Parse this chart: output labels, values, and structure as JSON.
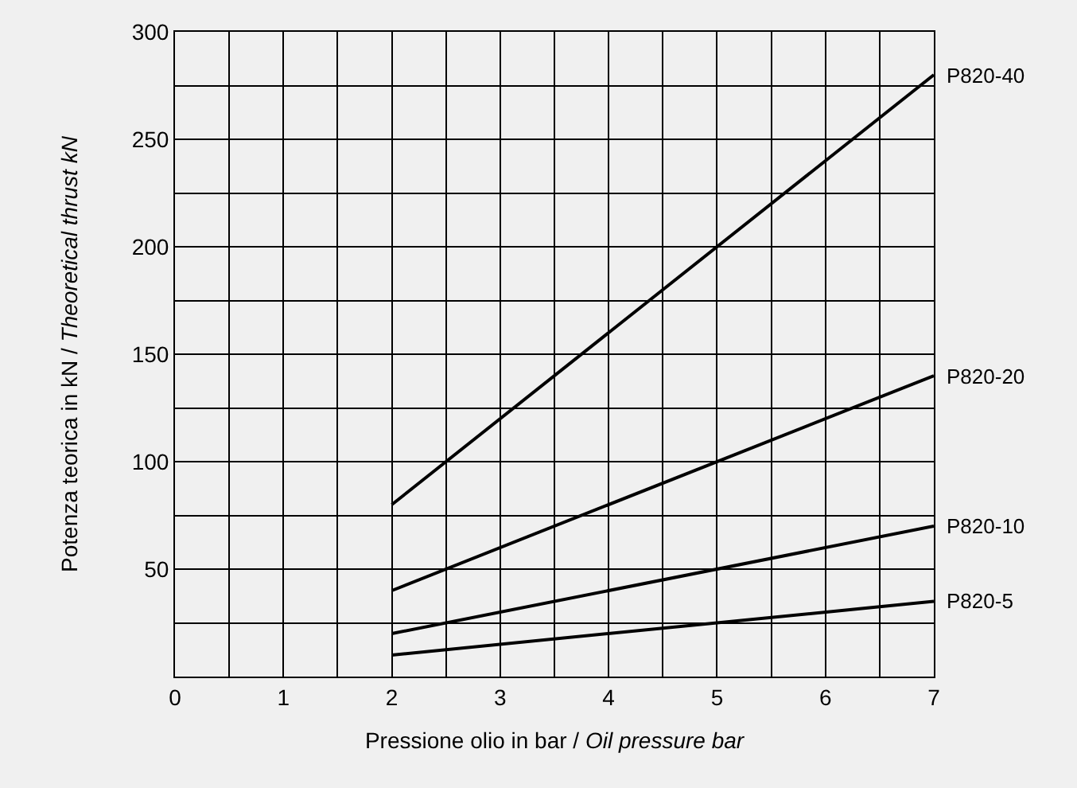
{
  "chart_data": {
    "type": "line",
    "xlabel": "Pressione olio in bar / Oil pressure bar",
    "ylabel": "Potenza teorica in kN / Theoretical thrust kN",
    "x": [
      2,
      7
    ],
    "series": [
      {
        "name": "P820-40",
        "color": "#000000",
        "values": [
          80,
          280
        ]
      },
      {
        "name": "P820-20",
        "color": "#000000",
        "values": [
          40,
          140
        ]
      },
      {
        "name": "P820-10",
        "color": "#000000",
        "values": [
          20,
          70
        ]
      },
      {
        "name": "P820-5",
        "color": "#000000",
        "values": [
          10,
          35
        ]
      }
    ],
    "xlim": [
      0,
      7
    ],
    "ylim": [
      0,
      300
    ],
    "xticks": [
      0,
      {
        "value": 0.5,
        "label": null
      },
      1,
      {
        "value": 1.5,
        "label": null
      },
      2,
      {
        "value": 2.5,
        "label": null
      },
      3,
      {
        "value": 3.5,
        "label": null
      },
      4,
      {
        "value": 4.5,
        "label": null
      },
      5,
      {
        "value": 5.5,
        "label": null
      },
      6,
      {
        "value": 6.5,
        "label": null
      },
      7
    ],
    "yticks": [
      {
        "value": 0,
        "label": null
      },
      {
        "value": 25,
        "label": null
      },
      50,
      {
        "value": 75,
        "label": null
      },
      100,
      {
        "value": 125,
        "label": null
      },
      150,
      {
        "value": 175,
        "label": null
      },
      200,
      {
        "value": 225,
        "label": null
      },
      250,
      {
        "value": 275,
        "label": null
      },
      300
    ],
    "grid": true,
    "legend": false,
    "marker": "none",
    "line_style": "solid"
  }
}
